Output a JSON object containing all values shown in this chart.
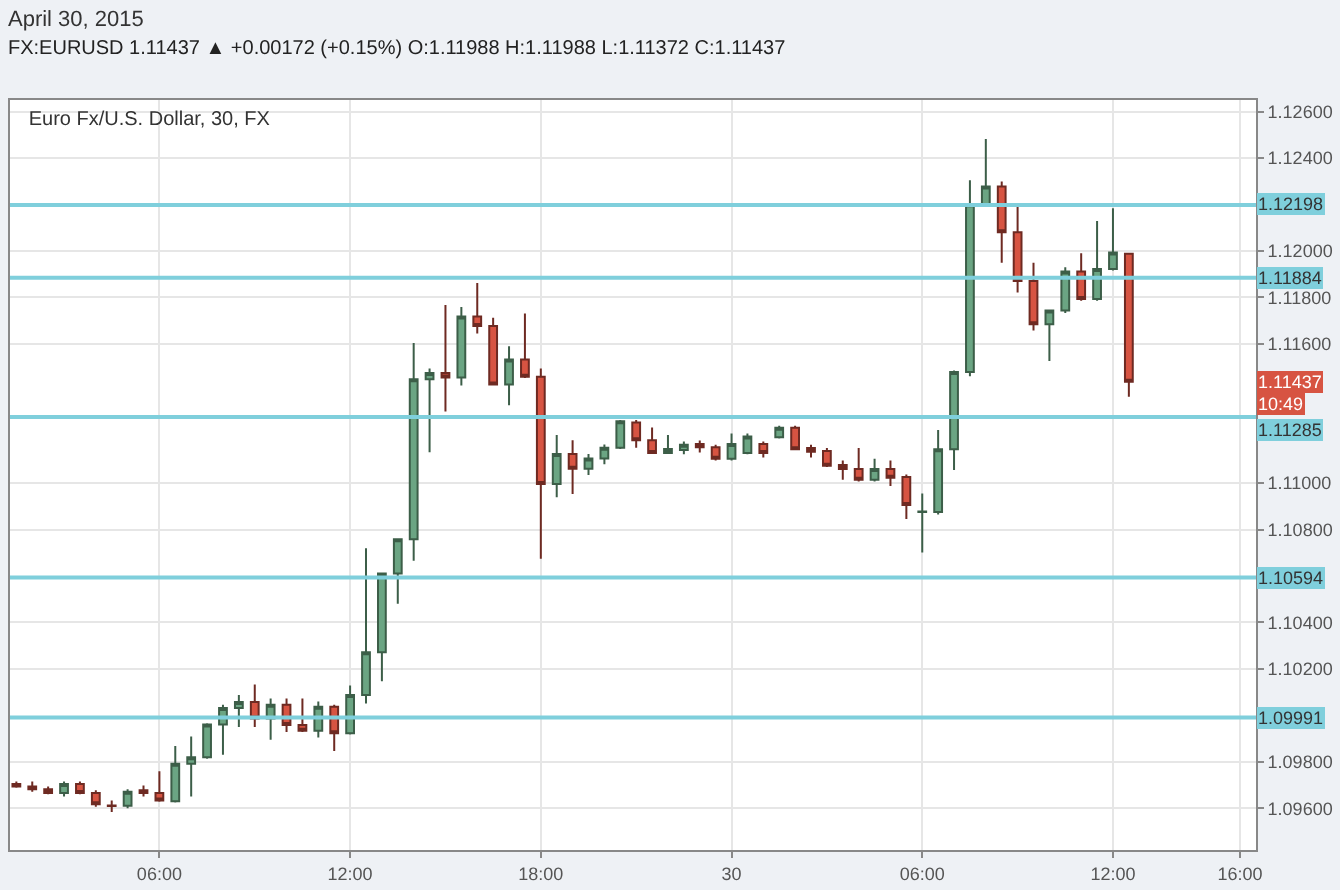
{
  "chart_data": {
    "type": "candlestick",
    "title": "Euro Fx/U.S. Dollar, 30, FX",
    "subtitle": "April 30, 2015",
    "annotations": [
      "FX:EURUSD 1.11437 ▲ +0.00172 (+0.15%) O:1.11988 H:1.11988 L:1.11372 C:1.11437",
      {
        "text": "1.11437",
        "y": 1.11437
      },
      "10:49"
    ],
    "x": [
      "2015-04-29T01:30",
      "2015-04-29T02:00",
      "2015-04-29T02:30",
      "2015-04-29T03:00",
      "2015-04-29T03:30",
      "2015-04-29T04:00",
      "2015-04-29T04:30",
      "2015-04-29T05:00",
      "2015-04-29T05:30",
      "2015-04-29T06:00",
      "2015-04-29T06:30",
      "2015-04-29T07:00",
      "2015-04-29T07:30",
      "2015-04-29T08:00",
      "2015-04-29T08:30",
      "2015-04-29T09:00",
      "2015-04-29T09:30",
      "2015-04-29T10:00",
      "2015-04-29T10:30",
      "2015-04-29T11:00",
      "2015-04-29T11:30",
      "2015-04-29T12:00",
      "2015-04-29T12:30",
      "2015-04-29T13:00",
      "2015-04-29T13:30",
      "2015-04-29T14:00",
      "2015-04-29T14:30",
      "2015-04-29T15:00",
      "2015-04-29T15:30",
      "2015-04-29T16:00",
      "2015-04-29T16:30",
      "2015-04-29T17:00",
      "2015-04-29T17:30",
      "2015-04-29T18:00",
      "2015-04-29T18:30",
      "2015-04-29T19:00",
      "2015-04-29T19:30",
      "2015-04-29T20:00",
      "2015-04-29T20:30",
      "2015-04-29T21:00",
      "2015-04-29T21:30",
      "2015-04-29T22:00",
      "2015-04-29T22:30",
      "2015-04-29T23:00",
      "2015-04-29T23:30",
      "2015-04-30T00:00",
      "2015-04-30T00:30",
      "2015-04-30T01:00",
      "2015-04-30T01:30",
      "2015-04-30T02:00",
      "2015-04-30T02:30",
      "2015-04-30T03:00",
      "2015-04-30T03:30",
      "2015-04-30T04:00",
      "2015-04-30T04:30",
      "2015-04-30T05:00",
      "2015-04-30T05:30",
      "2015-04-30T06:00",
      "2015-04-30T06:30",
      "2015-04-30T07:00",
      "2015-04-30T07:30",
      "2015-04-30T08:00",
      "2015-04-30T08:30",
      "2015-04-30T09:00",
      "2015-04-30T09:30",
      "2015-04-30T10:00",
      "2015-04-30T10:30",
      "2015-04-30T11:00",
      "2015-04-30T11:30",
      "2015-04-30T12:00",
      "2015-04-30T12:30"
    ],
    "ohlc": [
      [
        1.09704,
        1.09715,
        1.09688,
        1.09693
      ],
      [
        1.09693,
        1.09715,
        1.09671,
        1.09682
      ],
      [
        1.09682,
        1.09693,
        1.0966,
        1.09666
      ],
      [
        1.09666,
        1.09715,
        1.0965,
        1.09704
      ],
      [
        1.09704,
        1.09715,
        1.0966,
        1.09666
      ],
      [
        1.09666,
        1.09677,
        1.09606,
        1.09617
      ],
      [
        1.09612,
        1.09633,
        1.09584,
        1.0961
      ],
      [
        1.09611,
        1.09682,
        1.096,
        1.09671
      ],
      [
        1.09677,
        1.09698,
        1.0965,
        1.09666
      ],
      [
        1.09666,
        1.09759,
        1.09628,
        1.09633
      ],
      [
        1.0963,
        1.09868,
        1.09625,
        1.09791
      ],
      [
        1.09791,
        1.09909,
        1.0965,
        1.09819
      ],
      [
        1.09819,
        1.09966,
        1.09813,
        1.09961
      ],
      [
        1.09961,
        1.10046,
        1.0983,
        1.10032
      ],
      [
        1.10032,
        1.10087,
        1.0995,
        1.10057
      ],
      [
        1.10057,
        1.10133,
        1.0995,
        1.09986
      ],
      [
        1.09986,
        1.10073,
        1.09895,
        1.10046
      ],
      [
        1.10046,
        1.10073,
        1.09928,
        1.09958
      ],
      [
        1.09958,
        1.10073,
        1.09928,
        1.09934
      ],
      [
        1.09934,
        1.10059,
        1.09904,
        1.10037
      ],
      [
        1.10037,
        1.10046,
        1.09846,
        1.09923
      ],
      [
        1.09923,
        1.10128,
        1.09917,
        1.10087
      ],
      [
        1.10087,
        1.1072,
        1.10051,
        1.10272
      ],
      [
        1.10272,
        1.10611,
        1.10147,
        1.10611
      ],
      [
        1.10611,
        1.10758,
        1.1048,
        1.10758
      ],
      [
        1.10758,
        1.11603,
        1.10666,
        1.11447
      ],
      [
        1.11447,
        1.11494,
        1.11133,
        1.11474
      ],
      [
        1.11474,
        1.11767,
        1.11308,
        1.11455
      ],
      [
        1.11455,
        1.11759,
        1.1142,
        1.11718
      ],
      [
        1.11718,
        1.11862,
        1.11644,
        1.11677
      ],
      [
        1.11677,
        1.11712,
        1.11425,
        1.11425
      ],
      [
        1.11425,
        1.11589,
        1.11335,
        1.11532
      ],
      [
        1.11532,
        1.11731,
        1.11453,
        1.11458
      ],
      [
        1.11458,
        1.11494,
        1.10674,
        1.10996
      ],
      [
        1.10996,
        1.11207,
        1.10939,
        1.11125
      ],
      [
        1.11125,
        1.11185,
        1.10953,
        1.11062
      ],
      [
        1.11062,
        1.11125,
        1.11035,
        1.11106
      ],
      [
        1.11106,
        1.11166,
        1.11081,
        1.11152
      ],
      [
        1.11152,
        1.11272,
        1.11147,
        1.11267
      ],
      [
        1.11261,
        1.11272,
        1.11152,
        1.11185
      ],
      [
        1.11185,
        1.1124,
        1.11125,
        1.1113
      ],
      [
        1.1113,
        1.11207,
        1.11125,
        1.11147
      ],
      [
        1.11143,
        1.11179,
        1.11124,
        1.11165
      ],
      [
        1.11168,
        1.11184,
        1.11132,
        1.11154
      ],
      [
        1.11154,
        1.11165,
        1.11097,
        1.11105
      ],
      [
        1.11105,
        1.11214,
        1.11097,
        1.11168
      ],
      [
        1.1113,
        1.11214,
        1.11124,
        1.11201
      ],
      [
        1.11168,
        1.11179,
        1.1111,
        1.1113
      ],
      [
        1.11198,
        1.11247,
        1.11192,
        1.11239
      ],
      [
        1.11239,
        1.11247,
        1.11146,
        1.11146
      ],
      [
        1.11151,
        1.11165,
        1.1111,
        1.11135
      ],
      [
        1.11138,
        1.11151,
        1.11069,
        1.11075
      ],
      [
        1.11078,
        1.11097,
        1.11015,
        1.11061
      ],
      [
        1.11061,
        1.11151,
        1.11007,
        1.11015
      ],
      [
        1.11015,
        1.11105,
        1.11007,
        1.11061
      ],
      [
        1.11061,
        1.11097,
        1.10988,
        1.11023
      ],
      [
        1.11026,
        1.11037,
        1.10845,
        1.10906
      ],
      [
        1.10876,
        1.10955,
        1.10701,
        1.10878
      ],
      [
        1.10876,
        1.11229,
        1.10865,
        1.11146
      ],
      [
        1.11146,
        1.11485,
        1.11056,
        1.11479
      ],
      [
        1.11479,
        1.12304,
        1.1146,
        1.12201
      ],
      [
        1.12201,
        1.12482,
        1.12195,
        1.12277
      ],
      [
        1.12277,
        1.12299,
        1.11949,
        1.1208
      ],
      [
        1.1208,
        1.12203,
        1.11821,
        1.1187
      ],
      [
        1.1187,
        1.11949,
        1.11657,
        1.11684
      ],
      [
        1.11684,
        1.11744,
        1.11526,
        1.11744
      ],
      [
        1.11744,
        1.1193,
        1.11733,
        1.11911
      ],
      [
        1.11911,
        1.1199,
        1.11785,
        1.11793
      ],
      [
        1.11793,
        1.12129,
        1.11785,
        1.11922
      ],
      [
        1.11922,
        1.12184,
        1.11916,
        1.11993
      ],
      [
        1.11988,
        1.11988,
        1.11372,
        1.11437
      ]
    ],
    "xlim": [
      "2015-04-29T01:18",
      "2015-04-30T16:30"
    ],
    "xticks": [
      {
        "value": "2015-04-29T06:00",
        "label": "06:00"
      },
      {
        "value": "2015-04-29T12:00",
        "label": "12:00"
      },
      {
        "value": "2015-04-29T18:00",
        "label": "18:00"
      },
      {
        "value": "2015-04-30T00:00",
        "label": "30"
      },
      {
        "value": "2015-04-30T06:00",
        "label": "06:00"
      },
      {
        "value": "2015-04-30T12:00",
        "label": "12:00"
      },
      {
        "value": "2015-04-30T16:00",
        "label": "16:00"
      }
    ],
    "ylim": [
      1.0942,
      1.1265
    ],
    "yticks": [
      {
        "value": 1.096,
        "label": "1.09600"
      },
      {
        "value": 1.098,
        "label": "1.09800"
      },
      {
        "value": 1.102,
        "label": "1.10200"
      },
      {
        "value": 1.104,
        "label": "1.10400"
      },
      {
        "value": 1.108,
        "label": "1.10800"
      },
      {
        "value": 1.11,
        "label": "1.11000"
      },
      {
        "value": 1.116,
        "label": "1.11600"
      },
      {
        "value": 1.118,
        "label": "1.11800"
      },
      {
        "value": 1.12,
        "label": "1.12000"
      },
      {
        "value": 1.124,
        "label": "1.12400"
      },
      {
        "value": 1.126,
        "label": "1.12600"
      }
    ],
    "ref_lines": [
      {
        "axis": "y",
        "value": 1.12198,
        "label": "1.12198",
        "color": "#7fcfdc"
      },
      {
        "axis": "y",
        "value": 1.11884,
        "label": "1.11884",
        "color": "#7fcfdc"
      },
      {
        "axis": "y",
        "value": 1.11285,
        "label": "1.11285",
        "color": "#7fcfdc"
      },
      {
        "axis": "y",
        "value": 1.10594,
        "label": "1.10594",
        "color": "#7fcfdc"
      },
      {
        "axis": "y",
        "value": 1.09991,
        "label": "1.09991",
        "color": "#7fcfdc"
      }
    ],
    "grid": true
  }
}
